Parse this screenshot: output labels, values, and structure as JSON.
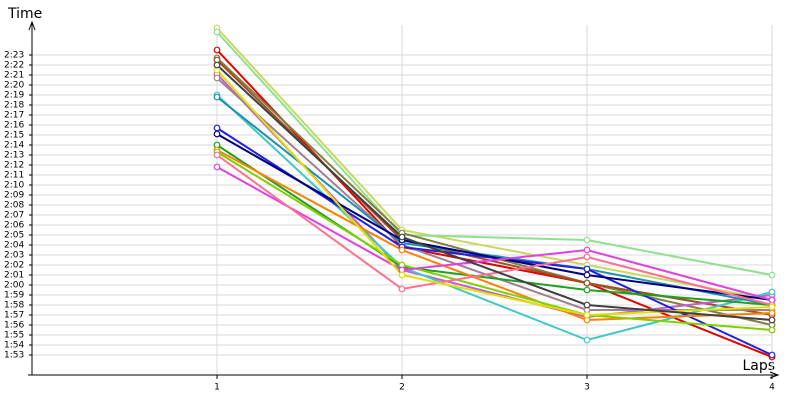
{
  "chart_data": {
    "type": "line",
    "y_label": "Time",
    "x_label": "Laps",
    "x": [
      1,
      2,
      3,
      4
    ],
    "xlim": [
      0,
      4
    ],
    "xticks": [
      1,
      2,
      3,
      4
    ],
    "ylim": [
      111,
      147
    ],
    "yticks": [
      {
        "value": 113,
        "label": "1:53"
      },
      {
        "value": 114,
        "label": "1:54"
      },
      {
        "value": 115,
        "label": "1:55"
      },
      {
        "value": 116,
        "label": "1:56"
      },
      {
        "value": 117,
        "label": "1:57"
      },
      {
        "value": 118,
        "label": "1:58"
      },
      {
        "value": 119,
        "label": "1:59"
      },
      {
        "value": 120,
        "label": "2:00"
      },
      {
        "value": 121,
        "label": "2:01"
      },
      {
        "value": 122,
        "label": "2:02"
      },
      {
        "value": 123,
        "label": "2:03"
      },
      {
        "value": 124,
        "label": "2:04"
      },
      {
        "value": 125,
        "label": "2:05"
      },
      {
        "value": 126,
        "label": "2:06"
      },
      {
        "value": 127,
        "label": "2:07"
      },
      {
        "value": 128,
        "label": "2:08"
      },
      {
        "value": 129,
        "label": "2:09"
      },
      {
        "value": 130,
        "label": "2:10"
      },
      {
        "value": 131,
        "label": "2:11"
      },
      {
        "value": 132,
        "label": "2:12"
      },
      {
        "value": 133,
        "label": "2:13"
      },
      {
        "value": 134,
        "label": "2:14"
      },
      {
        "value": 135,
        "label": "2:15"
      },
      {
        "value": 136,
        "label": "2:16"
      },
      {
        "value": 137,
        "label": "2:17"
      },
      {
        "value": 138,
        "label": "2:18"
      },
      {
        "value": 139,
        "label": "2:19"
      },
      {
        "value": 140,
        "label": "2:20"
      },
      {
        "value": 141,
        "label": "2:21"
      },
      {
        "value": 142,
        "label": "2:22"
      },
      {
        "value": 143,
        "label": "2:23"
      }
    ],
    "grid": true,
    "series": [
      {
        "color": "#c8d860",
        "values": [
          145.7,
          125.5,
          122.0,
          118.5
        ]
      },
      {
        "color": "#90e090",
        "values": [
          145.3,
          125.0,
          124.5,
          121.0
        ]
      },
      {
        "color": "#e00000",
        "values": [
          143.5,
          123.8,
          120.2,
          112.8
        ]
      },
      {
        "color": "#808040",
        "values": [
          142.7,
          125.2,
          120.2,
          116.0
        ]
      },
      {
        "color": "#a05020",
        "values": [
          142.5,
          124.5,
          120.2,
          117.0
        ]
      },
      {
        "color": "#c060d0",
        "values": [
          141.1,
          121.5,
          116.8,
          119.0
        ]
      },
      {
        "color": "#a08090",
        "values": [
          140.7,
          124.0,
          117.5,
          117.5
        ]
      },
      {
        "color": "#40c8c8",
        "values": [
          139.0,
          121.8,
          114.5,
          119.3
        ]
      },
      {
        "color": "#2090b0",
        "values": [
          138.8,
          124.2,
          121.6,
          118.0
        ]
      },
      {
        "color": "#2020e0",
        "values": [
          135.7,
          123.8,
          121.6,
          113.0
        ]
      },
      {
        "color": "#000080",
        "values": [
          135.1,
          124.5,
          121.0,
          118.5
        ]
      },
      {
        "color": "#20a020",
        "values": [
          134.0,
          121.8,
          119.5,
          118.0
        ]
      },
      {
        "color": "#ff8000",
        "values": [
          133.5,
          123.5,
          116.5,
          117.2
        ]
      },
      {
        "color": "#80d000",
        "values": [
          133.3,
          122.0,
          117.0,
          115.5
        ]
      },
      {
        "color": "#e040e0",
        "values": [
          131.8,
          121.5,
          123.5,
          118.5
        ]
      },
      {
        "color": "#ff7090",
        "values": [
          133.0,
          119.6,
          122.8,
          118.0
        ]
      },
      {
        "color": "#e0e000",
        "values": [
          141.5,
          121.0,
          117.0,
          117.8
        ]
      },
      {
        "color": "#404040",
        "values": [
          142.0,
          124.8,
          118.0,
          116.5
        ]
      }
    ]
  }
}
